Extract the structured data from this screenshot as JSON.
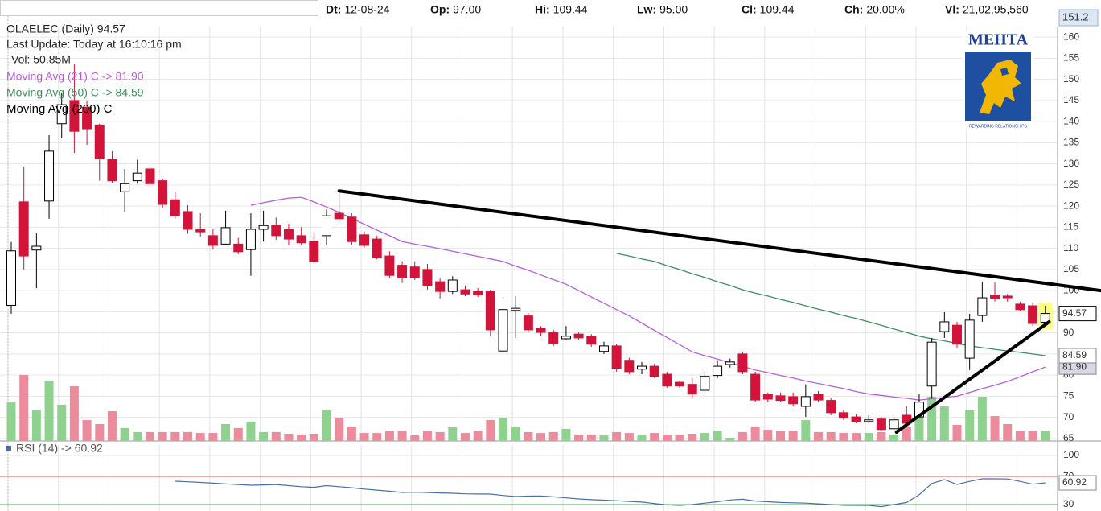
{
  "header": {
    "items": [
      {
        "label": "Dt:",
        "value": "12-08-24"
      },
      {
        "label": "Op:",
        "value": "97.00"
      },
      {
        "label": "Hi:",
        "value": "109.44"
      },
      {
        "label": "Lw:",
        "value": "95.00"
      },
      {
        "label": "Cl:",
        "value": "109.44"
      },
      {
        "label": "Ch:",
        "value": "20.00%"
      },
      {
        "label": "Vl:",
        "value": "21,02,95,560"
      }
    ],
    "price": "151.2"
  },
  "logo": {
    "title": "MEHTA",
    "tagline": "REWARDING RELATIONSHIPS"
  },
  "chart_data": [
    {
      "type": "candlestick",
      "title": "OLAELEC (Daily) 94.57",
      "annotations": [
        "Last Update: Today at 16:10:16 pm",
        "Vol: 50.85M"
      ],
      "open": [
        96.5,
        121,
        109.6,
        121.2,
        139.5,
        145,
        143.4,
        139.2,
        131,
        123.4,
        126,
        128.8,
        126,
        121.5,
        118.7,
        114.5,
        113,
        111,
        111,
        109.7,
        114.5,
        115.4,
        114.5,
        113,
        111.6,
        113,
        118.3,
        117.4,
        113.2,
        112.2,
        108.2,
        106,
        105.6,
        105,
        102.1,
        99.8,
        100.2,
        99.8,
        99.8,
        85.7,
        95.3,
        94,
        91,
        90.1,
        88.6,
        89.7,
        89.2,
        85.6,
        86.9,
        83.5,
        81.4,
        82.1,
        80.2,
        78.3,
        77.8,
        76.4,
        79.9,
        82.5,
        85,
        80.2,
        75.5,
        75.1,
        74.9,
        72.6,
        75.5,
        74,
        71.1,
        70.1,
        69,
        69.6,
        67.3,
        70.5,
        70.1,
        77.4,
        90.3,
        91.8,
        84,
        94.1,
        98.9,
        98.7,
        96.8,
        96.4,
        92.5
      ],
      "high": [
        111.5,
        129.3,
        113.5,
        136.8,
        146.9,
        153.5,
        145,
        139.5,
        133,
        128.8,
        131,
        129.3,
        126.5,
        123.4,
        120.2,
        118.3,
        114.5,
        118.9,
        112.5,
        118.3,
        118.9,
        117.3,
        115.8,
        115,
        113.5,
        119.2,
        123.4,
        118.3,
        114,
        113,
        109.3,
        106.9,
        106.9,
        106.3,
        103,
        103.4,
        101.2,
        100.6,
        100.2,
        97.4,
        98.7,
        94.7,
        91.6,
        90.7,
        91.6,
        90.3,
        89.7,
        87.9,
        87.3,
        84.1,
        83.1,
        82.7,
        80.8,
        78.7,
        79.3,
        80.8,
        83.5,
        83.9,
        85.4,
        80.8,
        75.9,
        75.9,
        75.9,
        77.8,
        76.2,
        74.5,
        71.7,
        70.7,
        70.5,
        70.1,
        70.1,
        72.6,
        75.5,
        88.8,
        94.9,
        92.6,
        94.5,
        102.1,
        101.9,
        99.2,
        97.4,
        97.2,
        96.4
      ],
      "low": [
        94.5,
        105,
        100.6,
        117,
        136,
        132.6,
        134.5,
        126,
        125.5,
        118.7,
        125.3,
        124.9,
        119.6,
        117,
        113.5,
        112.8,
        109.7,
        110.7,
        108.6,
        103.5,
        111.6,
        112,
        110.7,
        110.7,
        106.5,
        110.7,
        116.4,
        110.7,
        110.2,
        107.4,
        103,
        101.8,
        102.5,
        100.2,
        98.1,
        99.2,
        98.7,
        98.5,
        89.2,
        85.7,
        88.8,
        90.3,
        89.2,
        86.9,
        88.4,
        88.4,
        86.7,
        85,
        80.8,
        80.2,
        80.2,
        79.3,
        77,
        77,
        74.5,
        75.5,
        79.3,
        81.8,
        80.2,
        73.6,
        73.6,
        73.6,
        72.6,
        70.1,
        73.6,
        70.5,
        69.4,
        68.6,
        68.6,
        66.7,
        66.7,
        67.9,
        69.8,
        74.5,
        88.8,
        86.5,
        81.2,
        92.6,
        97.4,
        97.4,
        95.1,
        91.6,
        91.6
      ],
      "close": [
        109.4,
        108.2,
        110.5,
        133,
        144,
        137.7,
        138.3,
        131.2,
        126,
        125.3,
        127.8,
        125.3,
        120.4,
        117.7,
        114.5,
        113.9,
        110.7,
        114.9,
        109.2,
        114.5,
        115.4,
        113,
        112.2,
        111.3,
        106.9,
        117.7,
        117,
        111.6,
        110.7,
        107.8,
        103.6,
        103,
        103,
        101.2,
        99.8,
        102.5,
        99.2,
        99,
        90.7,
        95.5,
        95.8,
        90.7,
        90.1,
        87.5,
        89.2,
        88.8,
        87.3,
        86.9,
        81.6,
        80.8,
        82.1,
        79.7,
        77.4,
        77.4,
        75.5,
        79.7,
        82.1,
        83.1,
        80.8,
        74.1,
        74.3,
        74,
        73.2,
        74.9,
        74.1,
        71.1,
        69.8,
        69,
        69.4,
        67.1,
        69.4,
        68.6,
        73.6,
        87.8,
        92.6,
        87.3,
        93,
        98.3,
        98.1,
        98.3,
        95.5,
        92.2,
        94.57
      ],
      "volume": [
        203,
        348,
        161,
        318,
        191,
        288,
        110,
        89,
        157,
        68,
        47,
        47,
        47,
        47,
        47,
        42,
        42,
        89,
        68,
        102,
        47,
        47,
        38,
        34,
        38,
        161,
        119,
        76,
        42,
        42,
        55,
        55,
        30,
        55,
        47,
        72,
        42,
        55,
        110,
        119,
        76,
        47,
        42,
        47,
        64,
        34,
        34,
        30,
        47,
        42,
        34,
        42,
        34,
        34,
        38,
        42,
        55,
        17,
        47,
        76,
        59,
        55,
        55,
        110,
        47,
        47,
        42,
        42,
        42,
        47,
        34,
        76,
        136,
        233,
        182,
        85,
        161,
        233,
        131,
        89,
        51,
        55,
        50.85
      ],
      "vlim": [
        0,
        500
      ],
      "up_color": "#ffffff",
      "down_color": "#d2143a",
      "volume_up_color": "#8fd18f",
      "volume_down_color": "#ec8b9b",
      "series": [
        {
          "name": "Moving Avg (21) C -> 81.90",
          "color": "#b65ee0",
          "values": [
            null,
            null,
            null,
            null,
            null,
            null,
            null,
            null,
            null,
            null,
            null,
            null,
            null,
            null,
            null,
            null,
            null,
            null,
            null,
            120.2,
            120.8,
            121.4,
            121.9,
            122.1,
            121,
            119.8,
            118.5,
            117.1,
            115.7,
            114.3,
            113,
            111.6,
            111,
            110.5,
            109.9,
            109.3,
            108.7,
            108.1,
            107.5,
            106.9,
            105.8,
            104.8,
            103.7,
            102.6,
            101.5,
            100,
            98.5,
            97,
            95.5,
            94,
            92.3,
            90.6,
            88.9,
            87.2,
            85.5,
            84.6,
            83.8,
            82.9,
            82.1,
            81.2,
            80.6,
            79.9,
            79.3,
            78.6,
            78,
            77.4,
            76.8,
            76.1,
            75.5,
            75.2,
            74.8,
            74.5,
            74.1,
            74.4,
            74.7,
            75,
            75.9,
            76.8,
            77.6,
            78.5,
            79.6,
            80.8,
            81.9
          ]
        },
        {
          "name": "Moving Avg (50) C -> 84.59",
          "color": "#3f8f5a",
          "values": [
            null,
            null,
            null,
            null,
            null,
            null,
            null,
            null,
            null,
            null,
            null,
            null,
            null,
            null,
            null,
            null,
            null,
            null,
            null,
            null,
            null,
            null,
            null,
            null,
            null,
            null,
            null,
            null,
            null,
            null,
            null,
            null,
            null,
            null,
            null,
            null,
            null,
            null,
            null,
            null,
            null,
            null,
            null,
            null,
            null,
            null,
            null,
            null,
            108.8,
            108.2,
            107.5,
            106.9,
            105.9,
            105,
            104,
            103.1,
            102.1,
            101.2,
            100.2,
            99.4,
            98.7,
            97.9,
            97.2,
            96.4,
            95.6,
            94.9,
            94.1,
            93.4,
            92.6,
            91.8,
            90.9,
            90.1,
            89.2,
            88.6,
            88.1,
            87.5,
            86.9,
            86.5,
            86.1,
            85.7,
            85.4,
            85,
            84.59
          ]
        },
        {
          "name": "Moving Avg (200) C",
          "color": "#000000"
        }
      ],
      "ylim": [
        64.4,
        162.5
      ],
      "yticks": [
        65,
        70,
        75,
        80,
        85,
        90,
        95,
        100,
        105,
        110,
        115,
        120,
        125,
        130,
        135,
        140,
        145,
        150,
        155,
        160
      ],
      "grid": true,
      "trendlines": [
        {
          "x": [
            26,
            86.4
          ],
          "y": [
            123.6,
            100
          ]
        },
        {
          "x": [
            70.2,
            82.3
          ],
          "y": [
            66.5,
            92.6
          ]
        }
      ],
      "price_markers": [
        94.57,
        84.59,
        {
          "value": 81.9,
          "label": "81.90"
        }
      ],
      "price_marker_colors": [
        "#ffffff",
        "#ffffff",
        "#d9d9e6"
      ]
    },
    {
      "type": "line",
      "title": "RSI (14) -> 60.92",
      "color": "#4a6fa5",
      "values": [
        null,
        null,
        null,
        null,
        null,
        null,
        null,
        null,
        null,
        null,
        null,
        null,
        null,
        63.3,
        62.5,
        61.5,
        60.5,
        59.5,
        58.5,
        57.5,
        58,
        58.5,
        57,
        55.5,
        54.5,
        57,
        55.5,
        54,
        52,
        50.5,
        49,
        47.2,
        47.5,
        47.2,
        46.5,
        46,
        45.2,
        45,
        44.9,
        43,
        41.5,
        42,
        42.3,
        41,
        39.5,
        38,
        37,
        36.3,
        35.5,
        34.5,
        33.5,
        31.5,
        29.5,
        28.8,
        30,
        32,
        34,
        36.5,
        37.5,
        35,
        34,
        33,
        32.5,
        32,
        31,
        30,
        29,
        28.8,
        28.8,
        27,
        30,
        33,
        44,
        60,
        65.6,
        58.7,
        63,
        66.7,
        66.7,
        66.5,
        63,
        59,
        60.92
      ],
      "ylim": [
        20.8,
        114.9
      ],
      "yticks": [
        100,
        70,
        30
      ],
      "tick_line_colors": [
        "#e6e6e6",
        "#e07a7a",
        "#4caf50"
      ],
      "last_marker": 60.92
    }
  ]
}
